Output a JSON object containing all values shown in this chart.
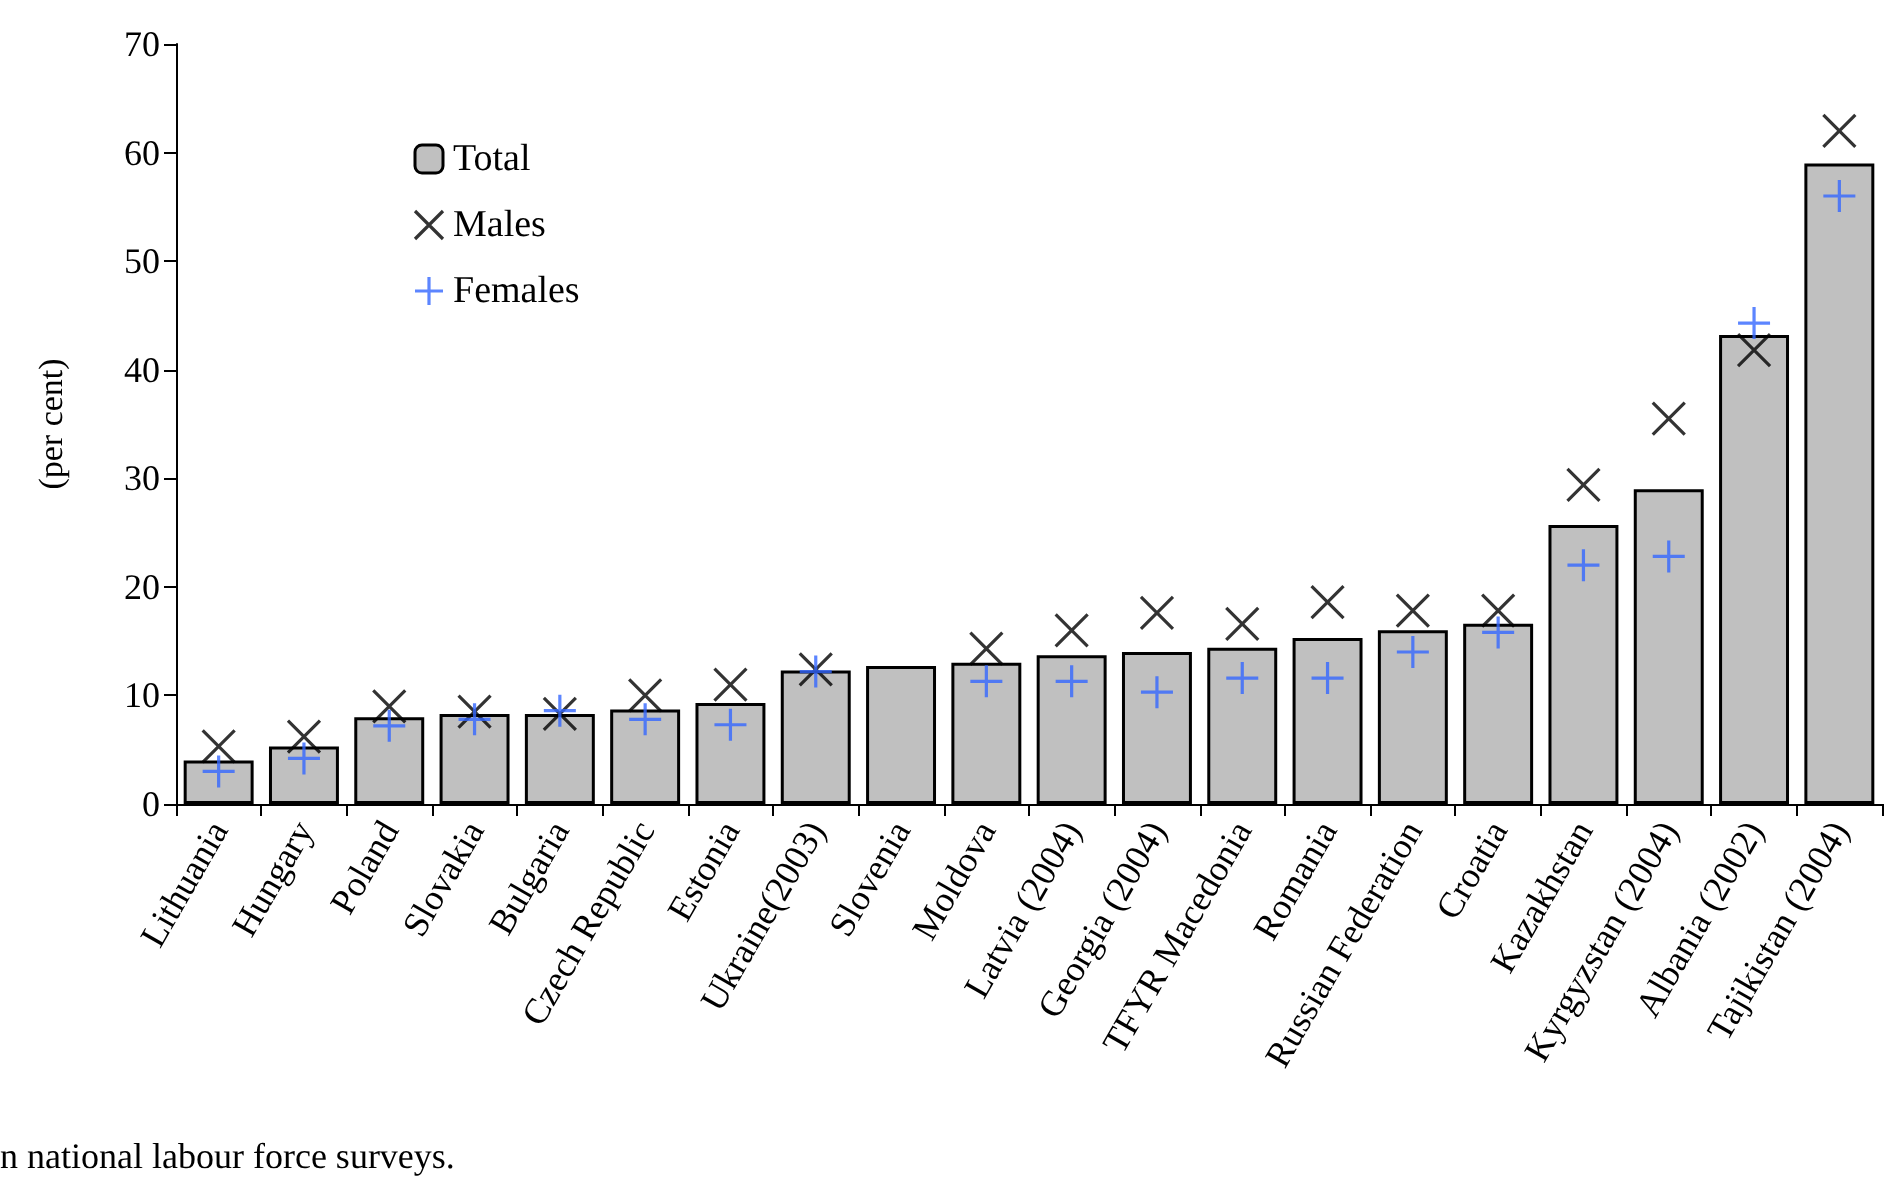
{
  "chart_data": {
    "type": "bar",
    "ylabel": "(per cent)",
    "categories": [
      "Lithuania",
      "Hungary",
      "Poland",
      "Slovakia",
      "Bulgaria",
      "Czech Republic",
      "Estonia",
      "Ukraine(2003)",
      "Slovenia",
      "Moldova",
      "Latvia (2004)",
      "Georgia (2004)",
      "TFYR Macedonia",
      "Romania",
      "Russian Federation",
      "Croatia",
      "Kazakhstan",
      "Kyrgyzstan (2004)",
      "Albania (2002)",
      "Tajikistan (2004)"
    ],
    "series": [
      {
        "name": "Total",
        "color": "#c0c0c0",
        "values": [
          4.0,
          5.3,
          8.0,
          8.3,
          8.3,
          8.7,
          9.3,
          12.3,
          12.7,
          13.0,
          13.7,
          14.0,
          14.4,
          15.3,
          16.0,
          16.6,
          25.7,
          29.0,
          43.2,
          59.0
        ]
      },
      {
        "name": "Males",
        "type": "scatter",
        "marker": "cross",
        "color": "#000000",
        "values": [
          5.3,
          6.2,
          9.0,
          8.5,
          8.3,
          10.0,
          11.0,
          12.4,
          null,
          14.3,
          16.0,
          17.6,
          16.6,
          18.6,
          17.8,
          17.8,
          29.4,
          35.5,
          41.8,
          62.0
        ]
      },
      {
        "name": "Females",
        "type": "scatter",
        "marker": "plus",
        "color": "#3366ff",
        "values": [
          3.0,
          4.2,
          7.2,
          7.8,
          8.6,
          7.8,
          7.3,
          12.2,
          null,
          11.3,
          11.3,
          10.3,
          11.6,
          11.6,
          14.0,
          15.8,
          22.0,
          22.8,
          44.3,
          56.0
        ]
      }
    ],
    "ylim": [
      0,
      70
    ],
    "yticks": [
      0,
      10,
      20,
      30,
      40,
      50,
      60,
      70
    ],
    "grid": false,
    "legend": "top left",
    "annotations": [
      "n national labour force surveys."
    ]
  }
}
